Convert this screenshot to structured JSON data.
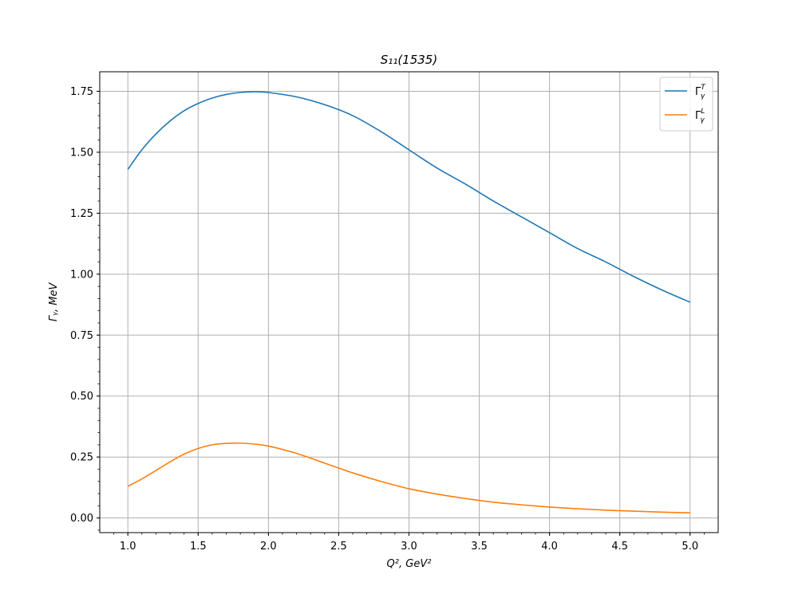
{
  "chart_data": {
    "type": "line",
    "title": "S₁₁(1535)",
    "xlabel": "Q², GeV²",
    "ylabel": "Γᵧ, MeV",
    "xlim": [
      0.8,
      5.2
    ],
    "ylim": [
      -0.06,
      1.83
    ],
    "xticks": [
      1.0,
      1.5,
      2.0,
      2.5,
      3.0,
      3.5,
      4.0,
      4.5,
      5.0
    ],
    "xtick_labels": [
      "1.0",
      "1.5",
      "2.0",
      "2.5",
      "3.0",
      "3.5",
      "4.0",
      "4.5",
      "5.0"
    ],
    "yticks": [
      0.0,
      0.25,
      0.5,
      0.75,
      1.0,
      1.25,
      1.5,
      1.75
    ],
    "ytick_labels": [
      "0.00",
      "0.25",
      "0.50",
      "0.75",
      "1.00",
      "1.25",
      "1.50",
      "1.75"
    ],
    "grid": true,
    "legend_position": "top-right",
    "series": [
      {
        "name": "ΓᵧT",
        "legend_main": "Γ",
        "legend_sup": "T",
        "legend_sub": "γ",
        "color": "#1f77b4",
        "x": [
          1.0,
          1.1,
          1.2,
          1.3,
          1.4,
          1.5,
          1.6,
          1.7,
          1.8,
          1.9,
          2.0,
          2.2,
          2.4,
          2.6,
          2.8,
          3.0,
          3.2,
          3.4,
          3.6,
          3.8,
          4.0,
          4.2,
          4.4,
          4.6,
          4.8,
          5.0
        ],
        "y": [
          1.43,
          1.51,
          1.575,
          1.628,
          1.67,
          1.7,
          1.722,
          1.737,
          1.745,
          1.748,
          1.745,
          1.727,
          1.695,
          1.65,
          1.585,
          1.51,
          1.435,
          1.37,
          1.3,
          1.235,
          1.17,
          1.105,
          1.05,
          0.99,
          0.935,
          0.885
        ]
      },
      {
        "name": "ΓᵧL",
        "legend_main": "Γ",
        "legend_sup": "L",
        "legend_sub": "γ",
        "color": "#ff7f0e",
        "x": [
          1.0,
          1.1,
          1.2,
          1.3,
          1.4,
          1.5,
          1.6,
          1.7,
          1.8,
          1.9,
          2.0,
          2.2,
          2.4,
          2.6,
          2.8,
          3.0,
          3.2,
          3.4,
          3.6,
          3.8,
          4.0,
          4.2,
          4.4,
          4.6,
          4.8,
          5.0
        ],
        "y": [
          0.13,
          0.16,
          0.195,
          0.23,
          0.262,
          0.285,
          0.3,
          0.306,
          0.307,
          0.303,
          0.295,
          0.265,
          0.225,
          0.185,
          0.15,
          0.12,
          0.098,
          0.08,
          0.065,
          0.054,
          0.045,
          0.038,
          0.032,
          0.028,
          0.024,
          0.021
        ]
      }
    ]
  }
}
